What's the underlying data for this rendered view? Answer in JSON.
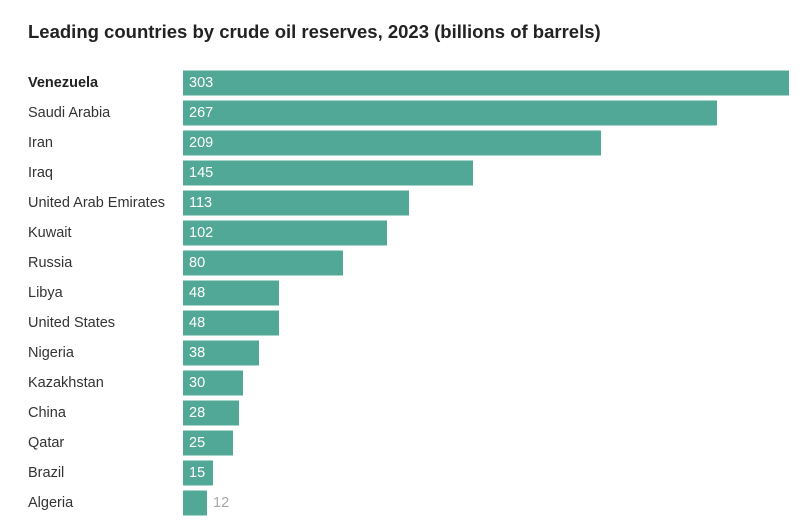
{
  "chart_data": {
    "type": "bar",
    "orientation": "horizontal",
    "title": "Leading countries by crude oil reserves, 2023 (billions of barrels)",
    "categories": [
      "Venezuela",
      "Saudi Arabia",
      "Iran",
      "Iraq",
      "United Arab Emirates",
      "Kuwait",
      "Russia",
      "Libya",
      "United States",
      "Nigeria",
      "Kazakhstan",
      "China",
      "Qatar",
      "Brazil",
      "Algeria"
    ],
    "values": [
      303,
      267,
      209,
      145,
      113,
      102,
      80,
      48,
      48,
      38,
      30,
      28,
      25,
      15,
      12
    ],
    "data_labels": [
      "303",
      "267",
      "209",
      "145",
      "113",
      "102",
      "80",
      "48",
      "48",
      "38",
      "30",
      "28",
      "25",
      "15",
      "12"
    ],
    "highlighted_category": "Venezuela",
    "xlim": [
      0,
      303
    ],
    "grid": false,
    "legend": "none",
    "colors": {
      "bar": "#52a896",
      "label_inside": "#ffffff",
      "label_outside": "#a8a8a8",
      "text": "#333333"
    }
  }
}
